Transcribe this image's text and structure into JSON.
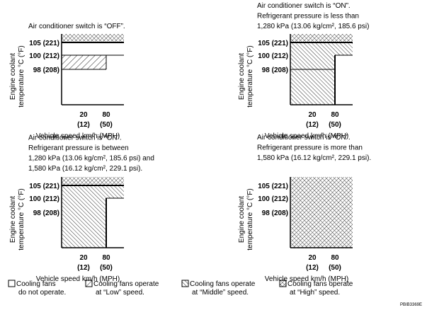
{
  "panels": [
    {
      "caption": [
        "Air conditioner switch is “OFF”."
      ],
      "y_labels": [
        "105 (221)",
        "100 (212)",
        "98 (208)"
      ],
      "y_title": [
        "Engine coolant",
        "temperature °C (°F)"
      ],
      "x_labels": [
        [
          "20",
          "(12)"
        ],
        [
          "80",
          "(50)"
        ]
      ],
      "x_title": "Vehicle speed km/h (MPH)"
    },
    {
      "caption": [
        "Air conditioner switch is “ON”.",
        "Refrigerant pressure is less than",
        "1,280 kPa (13.06 kg/cm², 185.6 psi)"
      ],
      "y_labels": [
        "105 (221)",
        "100 (212)",
        "98 (208)"
      ],
      "y_title": [
        "Engine coolant",
        "temperature °C (°F)"
      ],
      "x_labels": [
        [
          "20",
          "(12)"
        ],
        [
          "80",
          "(50)"
        ]
      ],
      "x_title": "Vehicle speed km/h (MPH)"
    },
    {
      "caption": [
        "Air conditioner switch is “ON”.",
        "Refrigerant pressure is between",
        "1,280 kPa (13.06 kg/cm², 185.6 psi) and",
        "1,580 kPa (16.12 kg/cm², 229.1 psi)."
      ],
      "y_labels": [
        "105 (221)",
        "100 (212)",
        "98 (208)"
      ],
      "y_title": [
        "Engine coolant",
        "temperature °C (°F)"
      ],
      "x_labels": [
        [
          "20",
          "(12)"
        ],
        [
          "80",
          "(50)"
        ]
      ],
      "x_title": "Vehicle speed km/h (MPH)"
    },
    {
      "caption": [
        "Air conditioner switch is “ON”.",
        "Refrigerant pressure is more than",
        "1,580 kPa (16.12 kg/cm², 229.1 psi)."
      ],
      "y_labels": [
        "105 (221)",
        "100 (212)",
        "98 (208)"
      ],
      "y_title": [
        "Engine coolant",
        "temperature °C (°F)"
      ],
      "x_labels": [
        [
          "20",
          "(12)"
        ],
        [
          "80",
          "(50)"
        ]
      ],
      "x_title": "Vehicle speed km/h (MPH)"
    }
  ],
  "legend": [
    [
      "Cooling fans",
      "do not operate."
    ],
    [
      "Cooling fans operate",
      "at “Low” speed."
    ],
    [
      "Cooling fans operate",
      "at “Middle” speed."
    ],
    [
      "Cooling fans operate",
      "at “High” speed."
    ]
  ],
  "code": "PBIB3369E"
}
